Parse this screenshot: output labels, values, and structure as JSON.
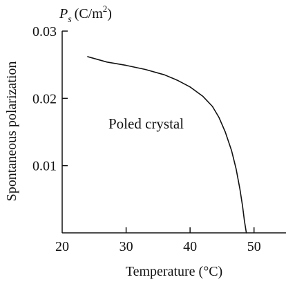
{
  "chart_data": {
    "type": "line",
    "unit_label": {
      "symbol": "P",
      "subscript": "s",
      "unit_prefix": "(C/m",
      "unit_power": "2",
      "unit_suffix": ")"
    },
    "xlabel": "Temperature (°C)",
    "ylabel": "Spontaneous polarization",
    "annotation": "Poled crystal",
    "xlim": [
      20,
      55
    ],
    "ylim": [
      0,
      0.03
    ],
    "x_ticks": [
      20,
      30,
      40,
      50
    ],
    "x_tick_labels": [
      "20",
      "30",
      "40",
      "50"
    ],
    "y_ticks": [
      0.01,
      0.02,
      0.03
    ],
    "y_tick_labels": [
      "0.01",
      "0.02",
      "0.03"
    ],
    "grid": false,
    "series": [
      {
        "color": "#111111",
        "x": [
          24.0,
          27.0,
          30.0,
          33.0,
          36.0,
          38.0,
          40.0,
          42.0,
          43.5,
          44.5,
          45.5,
          46.5,
          47.2,
          47.8,
          48.2,
          48.5,
          48.8
        ],
        "y": [
          0.0262,
          0.0254,
          0.0249,
          0.0243,
          0.0235,
          0.0227,
          0.0217,
          0.0203,
          0.0188,
          0.0172,
          0.015,
          0.0122,
          0.0095,
          0.0065,
          0.004,
          0.0018,
          0.0
        ]
      }
    ]
  }
}
